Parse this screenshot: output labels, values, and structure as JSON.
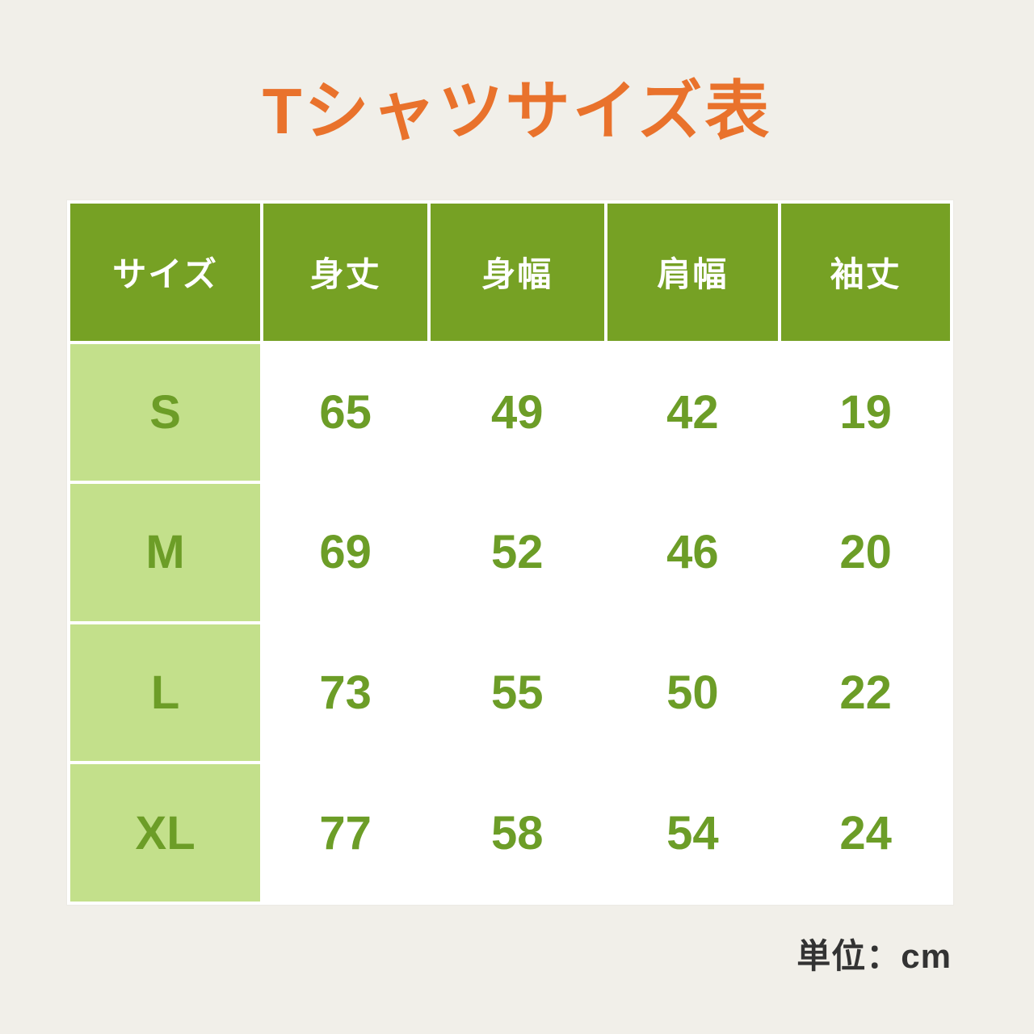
{
  "page": {
    "title": "Tシャツサイズ表",
    "unit_note": "単位：cm",
    "colors": {
      "background": "#F1EFE9",
      "title": "#E9722C",
      "header_bg": "#76A124",
      "header_text": "#FFFFFF",
      "size_col_bg": "#C3E08B",
      "cell_bg": "#FFFFFF",
      "grid_gap": "#FFFFFF",
      "value_text": "#6C9D27",
      "unit_text": "#333333"
    }
  },
  "chart_data": {
    "type": "table",
    "title": "Tシャツサイズ表",
    "unit": "cm",
    "columns": [
      "サイズ",
      "身丈",
      "身幅",
      "肩幅",
      "袖丈"
    ],
    "rows": [
      {
        "size": "S",
        "values": [
          65,
          49,
          42,
          19
        ]
      },
      {
        "size": "M",
        "values": [
          69,
          52,
          46,
          20
        ]
      },
      {
        "size": "L",
        "values": [
          73,
          55,
          50,
          22
        ]
      },
      {
        "size": "XL",
        "values": [
          77,
          58,
          54,
          24
        ]
      }
    ]
  }
}
